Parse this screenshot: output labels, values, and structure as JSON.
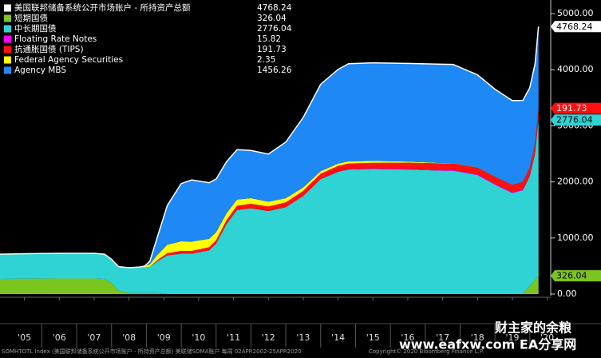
{
  "chart_data": {
    "type": "stacked-area",
    "total_label": "美国联邦储备系统公开市场账户 - 所持资产总额",
    "total": 4768.24,
    "x": [
      2004.8,
      2005.5,
      2006.5,
      2007.5,
      2007.8,
      2008.0,
      2008.2,
      2008.5,
      2008.8,
      2008.95,
      2009.1,
      2009.3,
      2009.6,
      2010.0,
      2010.3,
      2010.8,
      2011.0,
      2011.3,
      2011.6,
      2012.0,
      2012.5,
      2013.0,
      2013.5,
      2014.0,
      2014.5,
      2014.8,
      2015.5,
      2016.5,
      2017.5,
      2017.8,
      2018.5,
      2019.0,
      2019.5,
      2019.8,
      2020.0,
      2020.15,
      2020.25
    ],
    "series": [
      {
        "name": "短期国债",
        "color": "#7cc41f",
        "end_label": true,
        "values": [
          270,
          275,
          277,
          277,
          270,
          200,
          60,
          20,
          18,
          18,
          18,
          18,
          0,
          0,
          0,
          0,
          0,
          0,
          0,
          0,
          0,
          0,
          0,
          0,
          0,
          0,
          0,
          0,
          0,
          0,
          0,
          0,
          0,
          0,
          150,
          250,
          326.04
        ]
      },
      {
        "name": "中长期国债",
        "color": "#2fd3d3",
        "end_label": true,
        "values": [
          440,
          445,
          450,
          450,
          440,
          420,
          430,
          450,
          455,
          460,
          470,
          560,
          690,
          720,
          720,
          780,
          900,
          1250,
          1500,
          1530,
          1480,
          1550,
          1750,
          2050,
          2180,
          2220,
          2230,
          2220,
          2200,
          2200,
          2120,
          1950,
          1800,
          1850,
          1950,
          2250,
          2776.04
        ]
      },
      {
        "name": "Floating Rate Notes",
        "color": "#ff00ff",
        "end_label": false,
        "values": [
          0,
          0,
          0,
          0,
          0,
          0,
          0,
          0,
          0,
          0,
          0,
          0,
          0,
          0,
          0,
          0,
          0,
          0,
          0,
          0,
          0,
          0,
          0,
          0,
          5,
          8,
          10,
          12,
          14,
          14,
          15,
          15,
          16,
          16,
          16,
          16,
          15.82
        ]
      },
      {
        "name": "抗通胀国债 (TIPS)",
        "color": "#ff1010",
        "end_label": true,
        "values": [
          0,
          0,
          0,
          0,
          0,
          0,
          0,
          0,
          0,
          0,
          0,
          20,
          40,
          50,
          50,
          55,
          60,
          70,
          75,
          80,
          80,
          85,
          90,
          95,
          100,
          100,
          100,
          110,
          115,
          115,
          120,
          125,
          130,
          135,
          140,
          165,
          191.73
        ]
      },
      {
        "name": "Federal Agency Securities",
        "color": "#ffff00",
        "end_label": false,
        "values": [
          0,
          0,
          0,
          0,
          0,
          0,
          0,
          0,
          10,
          20,
          40,
          90,
          150,
          170,
          165,
          150,
          140,
          120,
          110,
          100,
          85,
          75,
          60,
          45,
          40,
          38,
          33,
          20,
          8,
          5,
          3,
          2.4,
          2.4,
          2.4,
          2.4,
          2.4,
          2.35
        ]
      },
      {
        "name": "Agency MBS",
        "color": "#1e88f5",
        "end_label": false,
        "values": [
          0,
          0,
          0,
          0,
          0,
          0,
          0,
          0,
          0,
          0,
          60,
          300,
          700,
          1030,
          1100,
          1000,
          950,
          920,
          890,
          850,
          850,
          1000,
          1250,
          1550,
          1680,
          1740,
          1750,
          1750,
          1760,
          1760,
          1650,
          1560,
          1500,
          1450,
          1420,
          1420,
          1456.26
        ]
      }
    ],
    "xlim": [
      2004.8,
      2020.6
    ],
    "xticks": [
      {
        "value": 2005.5,
        "label": "'05"
      },
      {
        "value": 2006.5,
        "label": "'06"
      },
      {
        "value": 2007.5,
        "label": "'07"
      },
      {
        "value": 2008.5,
        "label": "'08"
      },
      {
        "value": 2009.5,
        "label": "'09"
      },
      {
        "value": 2010.5,
        "label": "'10"
      },
      {
        "value": 2011.5,
        "label": "'11"
      },
      {
        "value": 2012.5,
        "label": "'12"
      },
      {
        "value": 2013.5,
        "label": "'13"
      },
      {
        "value": 2014.5,
        "label": "'14"
      },
      {
        "value": 2015.5,
        "label": "'15"
      },
      {
        "value": 2016.5,
        "label": "'16"
      },
      {
        "value": 2017.5,
        "label": "'17"
      },
      {
        "value": 2018.5,
        "label": "'18"
      },
      {
        "value": 2019.5,
        "label": "'19"
      },
      {
        "value": 2020.5,
        "label": "'20"
      }
    ],
    "ylim": [
      0,
      5100
    ],
    "yticks": [
      {
        "value": 0,
        "label": "0.00"
      },
      {
        "value": 1000,
        "label": "1000.00"
      },
      {
        "value": 2000,
        "label": "2000.00"
      },
      {
        "value": 3000,
        "label": "3000.00"
      },
      {
        "value": 4000,
        "label": "4000.00"
      },
      {
        "value": 5000,
        "label": "5000.00"
      }
    ],
    "footer": "SOMHTOTL Index (美国联邦储备系统公开市场账户 - 所持资产总额) 美联储SOMA账户  每周 02APR2002-25APR2020",
    "copyright": "Copyright© 2020 Bloomberg Finance L.P.",
    "watermark": "财主家的余粮",
    "watermark_site": "www.eafxw.com  EA分享网"
  }
}
